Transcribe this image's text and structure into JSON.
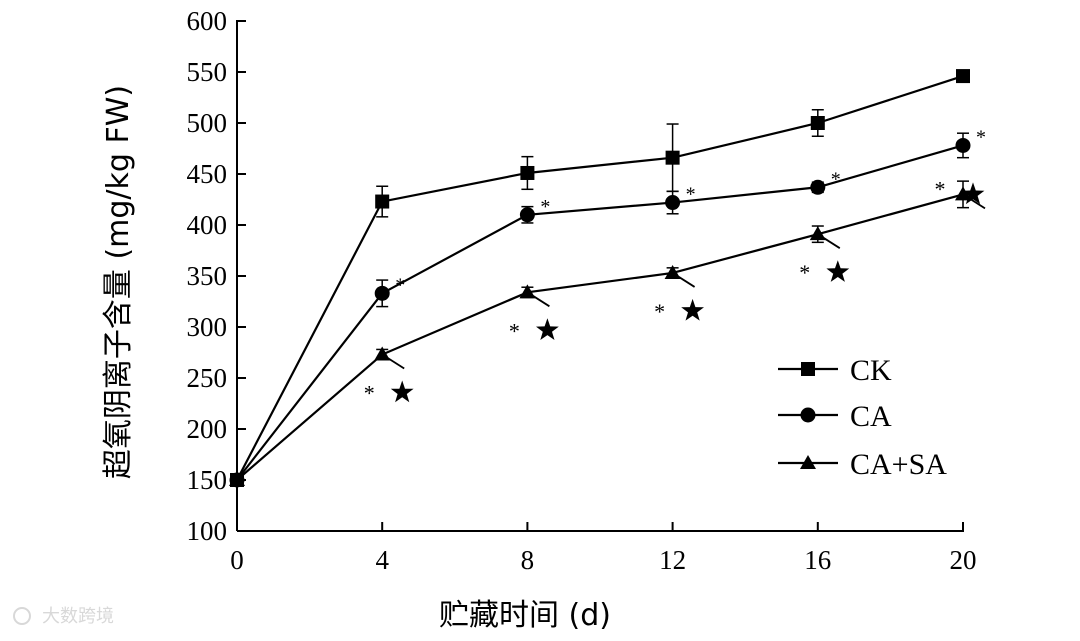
{
  "chart_data": {
    "type": "line",
    "xlabel": "贮藏时间 (d)",
    "ylabel": "超氧阴离子含量 (mg/kg FW)",
    "xlim": [
      0,
      20
    ],
    "ylim": [
      100,
      600
    ],
    "xticks": [
      0,
      4,
      8,
      12,
      16,
      20
    ],
    "yticks": [
      100,
      150,
      200,
      250,
      300,
      350,
      400,
      450,
      500,
      550,
      600
    ],
    "grid": false,
    "legend_position": "bottom-right",
    "series": [
      {
        "name": "CK",
        "marker": "square",
        "x": [
          0,
          4,
          8,
          12,
          16,
          20
        ],
        "y": [
          150,
          423,
          451,
          466,
          500,
          546
        ],
        "err": [
          4,
          15,
          16,
          33,
          13,
          3
        ],
        "sig": [
          "",
          "",
          "",
          "",
          "",
          ""
        ]
      },
      {
        "name": "CA",
        "marker": "circle",
        "x": [
          0,
          4,
          8,
          12,
          16,
          20
        ],
        "y": [
          150,
          333,
          410,
          422,
          437,
          478
        ],
        "err": [
          4,
          13,
          8,
          11,
          5,
          12
        ],
        "sig": [
          "",
          "*",
          "*",
          "*",
          "*",
          "*"
        ]
      },
      {
        "name": "CA+SA",
        "marker": "triangle",
        "x": [
          0,
          4,
          8,
          12,
          16,
          20
        ],
        "y": [
          150,
          273,
          334,
          353,
          391,
          430
        ],
        "err": [
          4,
          5,
          5,
          5,
          8,
          13
        ],
        "sig": [
          "",
          "*★",
          "*★",
          "*★",
          "*★",
          "*★"
        ]
      }
    ]
  },
  "watermark": "大数跨境"
}
